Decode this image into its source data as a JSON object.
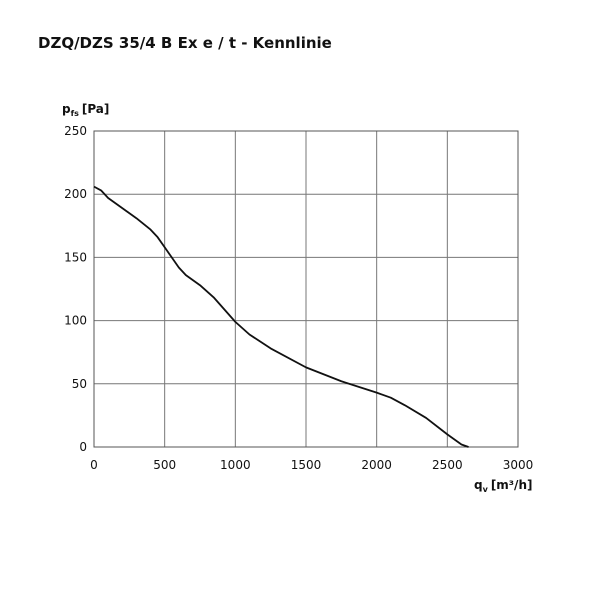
{
  "chart_data": {
    "type": "line",
    "title": "DZQ/DZS 35/4 B Ex e / t - Kennlinie",
    "y_label": {
      "symbol": "p",
      "subscript": "fs",
      "unit": "[Pa]"
    },
    "x_label": {
      "symbol": "q",
      "subscript": "v",
      "unit": "[m³/h]"
    },
    "x": [
      0,
      50,
      100,
      200,
      300,
      400,
      450,
      500,
      550,
      600,
      650,
      750,
      850,
      1000,
      1100,
      1250,
      1500,
      1750,
      2000,
      2100,
      2200,
      2350,
      2500,
      2600,
      2650
    ],
    "series": [
      {
        "name": "Kennlinie",
        "color": "#111111",
        "values": [
          206,
          203,
          197,
          189,
          181,
          172,
          166,
          158,
          150,
          142,
          136,
          128,
          118,
          99,
          89,
          78,
          63,
          52,
          43,
          39,
          33,
          23,
          10,
          2,
          0
        ]
      }
    ],
    "xlim": [
      0,
      3000
    ],
    "xticks": [
      0,
      500,
      1000,
      1500,
      2000,
      2500,
      3000
    ],
    "ylim": [
      0,
      250
    ],
    "yticks": [
      0,
      50,
      100,
      150,
      200,
      250
    ],
    "grid": true
  }
}
